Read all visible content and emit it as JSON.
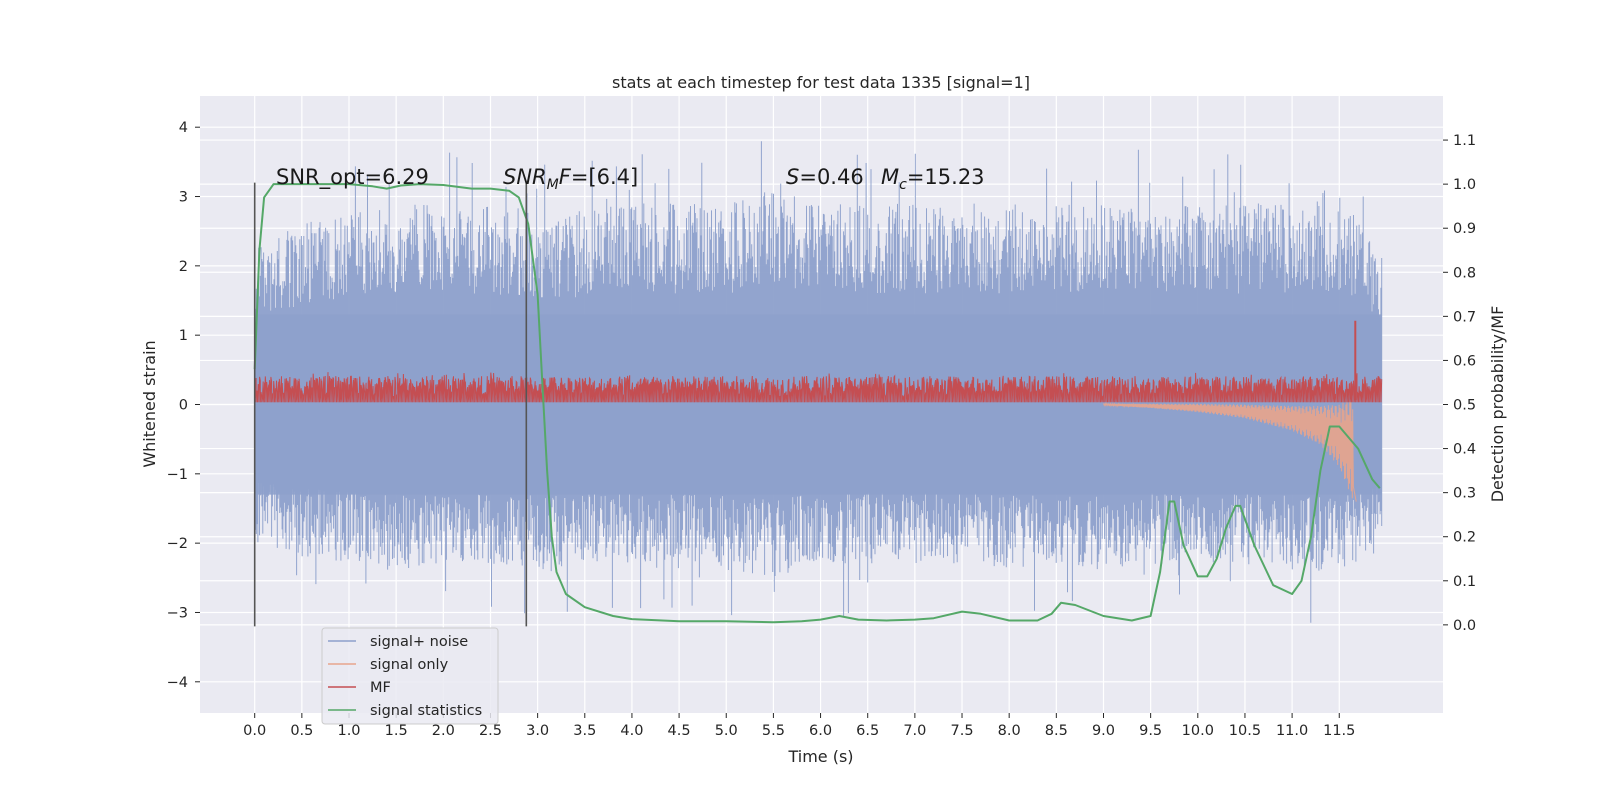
{
  "chart_data": {
    "type": "line",
    "title": "stats at each timestep for test data 1335 [signal=1]",
    "xlabel": "Time (s)",
    "ylabel": "Whitened strain",
    "y2label": "Detection probability/MF",
    "xlim": [
      -0.58,
      12.6
    ],
    "ylim": [
      -4.45,
      4.45
    ],
    "y2lim": [
      -0.2,
      1.2
    ],
    "grid": true,
    "legend_position": "bottom-left",
    "x_ticks": [
      "0.0",
      "0.5",
      "1.0",
      "1.5",
      "2.0",
      "2.5",
      "3.0",
      "3.5",
      "4.0",
      "4.5",
      "5.0",
      "5.5",
      "6.0",
      "6.5",
      "7.0",
      "7.5",
      "8.0",
      "8.5",
      "9.0",
      "9.5",
      "10.0",
      "10.5",
      "11.0",
      "11.5"
    ],
    "y_ticks": [
      "4",
      "3",
      "2",
      "1",
      "0",
      "−1",
      "−2",
      "−3",
      "−4"
    ],
    "y2_ticks": [
      "1.1",
      "1.0",
      "0.9",
      "0.8",
      "0.7",
      "0.6",
      "0.5",
      "0.4",
      "0.3",
      "0.2",
      "0.1",
      "0.0"
    ],
    "annotations": {
      "snr_opt": "SNR_opt=6.29",
      "snr_mf_italic": "SNR",
      "snr_mf_sub": "M",
      "snr_mf_rest": "F",
      "snr_mf_value": "=[6.4]",
      "s_symbol": "S",
      "s_value": "=0.46",
      "mc_symbol": "M",
      "mc_sub": "c",
      "mc_value": "=15.23"
    },
    "vertical_markers_x": [
      0.0,
      2.88
    ],
    "series": [
      {
        "name": "signal+ noise",
        "color": "#8da0cb",
        "x_range": [
          0.0,
          11.95
        ],
        "envelope": [
          [
            0.0,
            -2.0,
            2.3
          ],
          [
            0.5,
            -2.2,
            2.6
          ],
          [
            1.0,
            -2.3,
            2.8
          ],
          [
            1.5,
            -2.4,
            2.9
          ],
          [
            2.0,
            -2.3,
            2.9
          ],
          [
            2.5,
            -2.3,
            2.9
          ],
          [
            3.0,
            -2.4,
            2.8
          ],
          [
            3.5,
            -2.3,
            2.8
          ],
          [
            4.0,
            -2.3,
            2.9
          ],
          [
            4.5,
            -2.3,
            2.9
          ],
          [
            5.0,
            -2.4,
            2.9
          ],
          [
            5.5,
            -2.5,
            3.1
          ],
          [
            6.0,
            -2.3,
            2.9
          ],
          [
            6.5,
            -2.3,
            2.9
          ],
          [
            7.0,
            -2.3,
            2.9
          ],
          [
            7.5,
            -2.3,
            2.9
          ],
          [
            8.0,
            -2.4,
            2.9
          ],
          [
            8.5,
            -2.3,
            2.9
          ],
          [
            9.0,
            -2.4,
            2.9
          ],
          [
            9.5,
            -2.3,
            2.9
          ],
          [
            10.0,
            -2.3,
            2.9
          ],
          [
            10.5,
            -2.3,
            2.9
          ],
          [
            11.0,
            -2.4,
            2.9
          ],
          [
            11.5,
            -2.4,
            3.0
          ],
          [
            11.95,
            -2.1,
            2.2
          ]
        ]
      },
      {
        "name": "signal only",
        "color": "#e8a48c",
        "points": [
          [
            9.0,
            0.0
          ],
          [
            9.5,
            -0.02
          ],
          [
            10.0,
            -0.05
          ],
          [
            10.5,
            -0.1
          ],
          [
            11.0,
            -0.2
          ],
          [
            11.3,
            -0.3
          ],
          [
            11.5,
            -0.45
          ],
          [
            11.65,
            -0.65
          ],
          [
            11.68,
            -1.4
          ]
        ],
        "amplitude_envelope": [
          [
            9.0,
            0.01
          ],
          [
            9.5,
            0.03
          ],
          [
            10.0,
            0.06
          ],
          [
            10.5,
            0.1
          ],
          [
            11.0,
            0.18
          ],
          [
            11.3,
            0.28
          ],
          [
            11.5,
            0.45
          ],
          [
            11.65,
            0.75
          ]
        ]
      },
      {
        "name": "MF",
        "color": "#c44e52",
        "x_range": [
          0.0,
          11.95
        ],
        "typical_range_y2": [
          0.505,
          0.565
        ],
        "peak": [
          11.67,
          0.69
        ]
      },
      {
        "name": "signal statistics",
        "color": "#55a868",
        "points": [
          [
            0.0,
            0.58
          ],
          [
            0.05,
            0.85
          ],
          [
            0.1,
            0.97
          ],
          [
            0.2,
            1.0
          ],
          [
            0.5,
            1.0
          ],
          [
            1.0,
            1.0
          ],
          [
            1.25,
            0.995
          ],
          [
            1.4,
            0.99
          ],
          [
            1.55,
            0.997
          ],
          [
            1.75,
            1.0
          ],
          [
            2.0,
            0.998
          ],
          [
            2.3,
            0.99
          ],
          [
            2.5,
            0.99
          ],
          [
            2.7,
            0.985
          ],
          [
            2.8,
            0.97
          ],
          [
            2.9,
            0.91
          ],
          [
            3.0,
            0.75
          ],
          [
            3.05,
            0.55
          ],
          [
            3.1,
            0.35
          ],
          [
            3.15,
            0.2
          ],
          [
            3.2,
            0.12
          ],
          [
            3.3,
            0.07
          ],
          [
            3.5,
            0.04
          ],
          [
            3.8,
            0.02
          ],
          [
            4.0,
            0.013
          ],
          [
            4.5,
            0.008
          ],
          [
            5.0,
            0.008
          ],
          [
            5.5,
            0.006
          ],
          [
            5.8,
            0.008
          ],
          [
            6.0,
            0.012
          ],
          [
            6.2,
            0.02
          ],
          [
            6.4,
            0.012
          ],
          [
            6.7,
            0.01
          ],
          [
            7.0,
            0.012
          ],
          [
            7.2,
            0.015
          ],
          [
            7.5,
            0.03
          ],
          [
            7.7,
            0.025
          ],
          [
            8.0,
            0.01
          ],
          [
            8.3,
            0.01
          ],
          [
            8.45,
            0.025
          ],
          [
            8.55,
            0.05
          ],
          [
            8.7,
            0.045
          ],
          [
            9.0,
            0.02
          ],
          [
            9.3,
            0.01
          ],
          [
            9.5,
            0.02
          ],
          [
            9.6,
            0.12
          ],
          [
            9.7,
            0.28
          ],
          [
            9.75,
            0.28
          ],
          [
            9.85,
            0.18
          ],
          [
            10.0,
            0.11
          ],
          [
            10.1,
            0.11
          ],
          [
            10.2,
            0.15
          ],
          [
            10.3,
            0.22
          ],
          [
            10.4,
            0.27
          ],
          [
            10.45,
            0.27
          ],
          [
            10.6,
            0.18
          ],
          [
            10.8,
            0.09
          ],
          [
            11.0,
            0.07
          ],
          [
            11.1,
            0.1
          ],
          [
            11.2,
            0.2
          ],
          [
            11.3,
            0.35
          ],
          [
            11.4,
            0.45
          ],
          [
            11.5,
            0.45
          ],
          [
            11.7,
            0.4
          ],
          [
            11.85,
            0.33
          ],
          [
            11.93,
            0.31
          ]
        ]
      }
    ]
  }
}
